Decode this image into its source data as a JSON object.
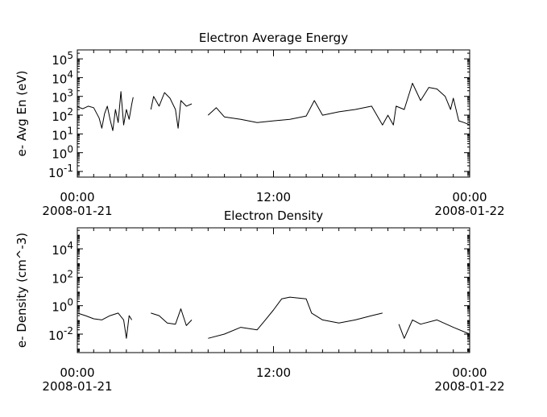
{
  "chart_data": [
    {
      "type": "line",
      "title": "Electron Average Energy",
      "xlabel": "",
      "ylabel": "e- Avg En (eV)",
      "yscale": "log",
      "ylim": [
        0.05,
        300000
      ],
      "yticks": [
        {
          "base": "10",
          "exp": "-1",
          "value": 0.1
        },
        {
          "base": "10",
          "exp": "0",
          "value": 1
        },
        {
          "base": "10",
          "exp": "1",
          "value": 10
        },
        {
          "base": "10",
          "exp": "2",
          "value": 100
        },
        {
          "base": "10",
          "exp": "3",
          "value": 1000
        },
        {
          "base": "10",
          "exp": "4",
          "value": 10000
        },
        {
          "base": "10",
          "exp": "5",
          "value": 100000
        }
      ],
      "xlim": [
        "2008-01-21 00:00",
        "2008-01-22 00:00"
      ],
      "xticks": [
        {
          "time": "00:00",
          "date": "2008-01-21",
          "value": "2008-01-21 00:00"
        },
        {
          "time": "12:00",
          "date": "",
          "value": "2008-01-21 12:00"
        },
        {
          "time": "00:00",
          "date": "2008-01-22",
          "value": "2008-01-22 00:00"
        }
      ],
      "grid": false,
      "series": [
        {
          "values": [
            [
              "2008-01-21 00:00",
              280
            ],
            [
              "2008-01-21 00:20",
              220
            ],
            [
              "2008-01-21 00:40",
              300
            ],
            [
              "2008-01-21 01:00",
              250
            ],
            [
              "2008-01-21 01:20",
              70
            ],
            [
              "2008-01-21 01:30",
              20
            ],
            [
              "2008-01-21 01:40",
              120
            ],
            [
              "2008-01-21 01:50",
              300
            ],
            [
              "2008-01-21 02:00",
              60
            ],
            [
              "2008-01-21 02:10",
              15
            ],
            [
              "2008-01-21 02:20",
              200
            ],
            [
              "2008-01-21 02:30",
              40
            ],
            [
              "2008-01-21 02:40",
              1800
            ],
            [
              "2008-01-21 02:50",
              30
            ],
            [
              "2008-01-21 03:00",
              200
            ],
            [
              "2008-01-21 03:10",
              60
            ],
            [
              "2008-01-21 03:20",
              400
            ],
            [
              "2008-01-21 03:25",
              900
            ],
            [
              "2008-01-21 03:30",
              null
            ],
            [
              "2008-01-21 04:30",
              200
            ],
            [
              "2008-01-21 04:40",
              1000
            ],
            [
              "2008-01-21 05:00",
              300
            ],
            [
              "2008-01-21 05:20",
              1600
            ],
            [
              "2008-01-21 05:40",
              800
            ],
            [
              "2008-01-21 06:00",
              200
            ],
            [
              "2008-01-21 06:10",
              20
            ],
            [
              "2008-01-21 06:20",
              600
            ],
            [
              "2008-01-21 06:40",
              300
            ],
            [
              "2008-01-21 07:00",
              400
            ],
            [
              "2008-01-21 07:10",
              null
            ],
            [
              "2008-01-21 08:00",
              100
            ],
            [
              "2008-01-21 08:30",
              250
            ],
            [
              "2008-01-21 09:00",
              80
            ],
            [
              "2008-01-21 10:00",
              60
            ],
            [
              "2008-01-21 11:00",
              40
            ],
            [
              "2008-01-21 12:00",
              50
            ],
            [
              "2008-01-21 13:00",
              60
            ],
            [
              "2008-01-21 14:00",
              90
            ],
            [
              "2008-01-21 14:30",
              600
            ],
            [
              "2008-01-21 15:00",
              100
            ],
            [
              "2008-01-21 16:00",
              150
            ],
            [
              "2008-01-21 17:00",
              200
            ],
            [
              "2008-01-21 18:00",
              300
            ],
            [
              "2008-01-21 18:40",
              30
            ],
            [
              "2008-01-21 19:00",
              100
            ],
            [
              "2008-01-21 19:20",
              30
            ],
            [
              "2008-01-21 19:30",
              300
            ],
            [
              "2008-01-21 20:00",
              200
            ],
            [
              "2008-01-21 20:30",
              5000
            ],
            [
              "2008-01-21 21:00",
              600
            ],
            [
              "2008-01-21 21:30",
              3000
            ],
            [
              "2008-01-21 22:00",
              2500
            ],
            [
              "2008-01-21 22:30",
              1000
            ],
            [
              "2008-01-21 22:50",
              200
            ],
            [
              "2008-01-21 23:00",
              800
            ],
            [
              "2008-01-21 23:20",
              50
            ],
            [
              "2008-01-21 23:40",
              40
            ],
            [
              "2008-01-22 00:00",
              30
            ]
          ]
        }
      ]
    },
    {
      "type": "line",
      "title": "Electron Density",
      "xlabel": "",
      "ylabel": "e- Density (cm^-3)",
      "yscale": "log",
      "ylim": [
        0.0005,
        300000
      ],
      "yticks": [
        {
          "base": "10",
          "exp": "-2",
          "value": 0.01
        },
        {
          "base": "10",
          "exp": "0",
          "value": 1
        },
        {
          "base": "10",
          "exp": "2",
          "value": 100
        },
        {
          "base": "10",
          "exp": "4",
          "value": 10000
        }
      ],
      "xlim": [
        "2008-01-21 00:00",
        "2008-01-22 00:00"
      ],
      "xticks": [
        {
          "time": "00:00",
          "date": "2008-01-21",
          "value": "2008-01-21 00:00"
        },
        {
          "time": "12:00",
          "date": "",
          "value": "2008-01-21 12:00"
        },
        {
          "time": "00:00",
          "date": "2008-01-22",
          "value": "2008-01-22 00:00"
        }
      ],
      "grid": false,
      "series": [
        {
          "values": [
            [
              "2008-01-21 00:00",
              0.3
            ],
            [
              "2008-01-21 00:30",
              0.2
            ],
            [
              "2008-01-21 01:00",
              0.12
            ],
            [
              "2008-01-21 01:30",
              0.1
            ],
            [
              "2008-01-21 02:00",
              0.2
            ],
            [
              "2008-01-21 02:30",
              0.3
            ],
            [
              "2008-01-21 02:50",
              0.1
            ],
            [
              "2008-01-21 03:00",
              0.005
            ],
            [
              "2008-01-21 03:10",
              0.2
            ],
            [
              "2008-01-21 03:20",
              0.1
            ],
            [
              "2008-01-21 03:30",
              null
            ],
            [
              "2008-01-21 04:30",
              0.3
            ],
            [
              "2008-01-21 05:00",
              0.2
            ],
            [
              "2008-01-21 05:30",
              0.06
            ],
            [
              "2008-01-21 06:00",
              0.05
            ],
            [
              "2008-01-21 06:20",
              0.6
            ],
            [
              "2008-01-21 06:40",
              0.04
            ],
            [
              "2008-01-21 07:00",
              0.1
            ],
            [
              "2008-01-21 07:10",
              null
            ],
            [
              "2008-01-21 08:00",
              0.005
            ],
            [
              "2008-01-21 09:00",
              0.01
            ],
            [
              "2008-01-21 10:00",
              0.03
            ],
            [
              "2008-01-21 11:00",
              0.02
            ],
            [
              "2008-01-21 11:30",
              0.1
            ],
            [
              "2008-01-21 12:00",
              0.5
            ],
            [
              "2008-01-21 12:30",
              3
            ],
            [
              "2008-01-21 13:00",
              4
            ],
            [
              "2008-01-21 14:00",
              3
            ],
            [
              "2008-01-21 14:20",
              0.3
            ],
            [
              "2008-01-21 15:00",
              0.1
            ],
            [
              "2008-01-21 16:00",
              0.06
            ],
            [
              "2008-01-21 17:00",
              0.1
            ],
            [
              "2008-01-21 18:00",
              0.2
            ],
            [
              "2008-01-21 18:40",
              0.3
            ],
            [
              "2008-01-21 19:00",
              null
            ],
            [
              "2008-01-21 19:40",
              0.05
            ],
            [
              "2008-01-21 20:00",
              0.005
            ],
            [
              "2008-01-21 20:30",
              0.1
            ],
            [
              "2008-01-21 21:00",
              0.05
            ],
            [
              "2008-01-21 22:00",
              0.1
            ],
            [
              "2008-01-21 23:00",
              0.03
            ],
            [
              "2008-01-22 00:00",
              0.01
            ]
          ]
        }
      ]
    }
  ]
}
